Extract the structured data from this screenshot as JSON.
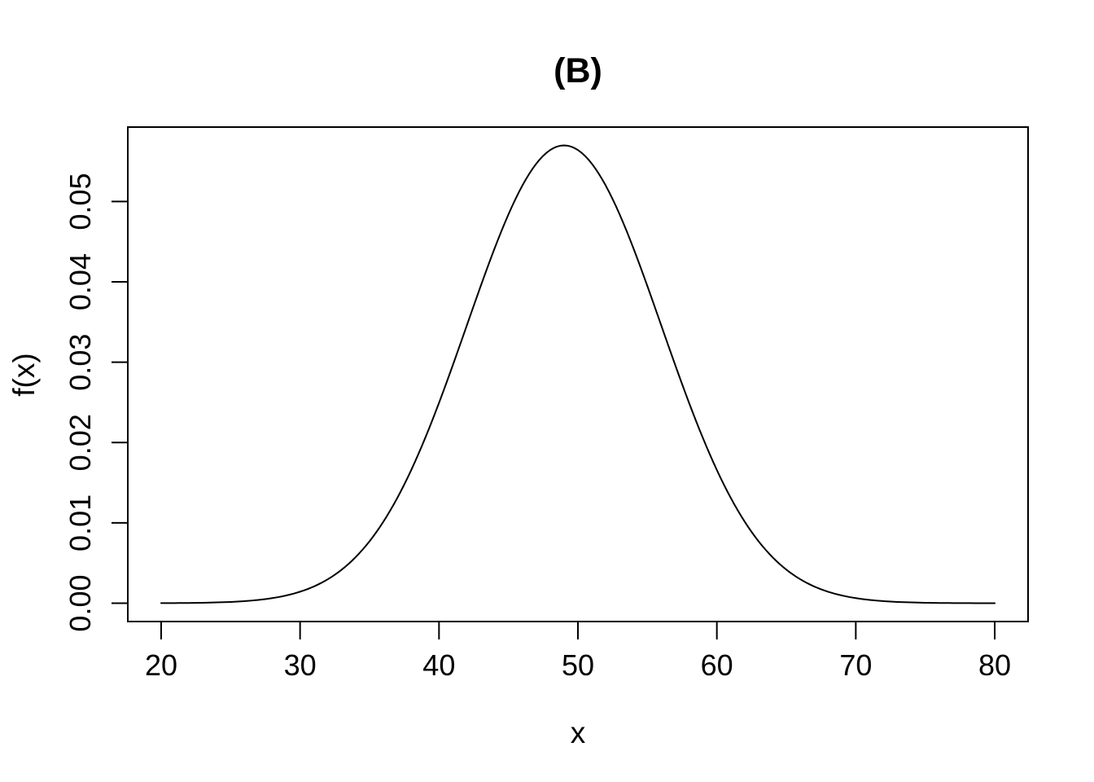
{
  "figure": {
    "title": "(B)",
    "xlabel": "x",
    "ylabel": "f(x)"
  },
  "chart_data": {
    "type": "line",
    "title": "(B)",
    "xlabel": "x",
    "ylabel": "f(x)",
    "xlim": [
      20,
      80
    ],
    "ylim": [
      0,
      0.056991
    ],
    "x_ticks": [
      20,
      30,
      40,
      50,
      60,
      70,
      80
    ],
    "x_tick_labels": [
      "20",
      "30",
      "40",
      "50",
      "60",
      "70",
      "80"
    ],
    "y_ticks": [
      0,
      0.01,
      0.02,
      0.03,
      0.04,
      0.05
    ],
    "y_tick_labels": [
      "0.00",
      "0.01",
      "0.02",
      "0.03",
      "0.04",
      "0.05"
    ],
    "grid": false,
    "legend": null,
    "line_color": "#000000",
    "background": "#ffffff",
    "curve": {
      "family": "normal-density",
      "mean": 49,
      "sd": 7,
      "peak": 0.056991
    },
    "series": [
      {
        "name": "density",
        "x": [
          20,
          21,
          22,
          23,
          24,
          25,
          26,
          27,
          28,
          29,
          30,
          31,
          32,
          33,
          34,
          35,
          36,
          37,
          38,
          39,
          40,
          41,
          42,
          43,
          44,
          45,
          46,
          47,
          48,
          49,
          50,
          51,
          52,
          53,
          54,
          55,
          56,
          57,
          58,
          59,
          60,
          61,
          62,
          63,
          64,
          65,
          66,
          67,
          68,
          69,
          70,
          71,
          72,
          73,
          74,
          75,
          76,
          77,
          78,
          79,
          80
        ],
        "y": [
          1.1e-05,
          1.9e-05,
          3.4e-05,
          5.8e-05,
          9.7e-05,
          0.00016,
          0.000257,
          0.000408,
          0.000633,
          0.000962,
          0.001431,
          0.002089,
          0.002986,
          0.004183,
          0.005735,
          0.007713,
          0.01016,
          0.01311,
          0.01658,
          0.020542,
          0.024938,
          0.029659,
          0.034567,
          0.039473,
          0.044162,
          0.048407,
          0.051991,
          0.054712,
          0.056413,
          0.056991,
          0.056413,
          0.054712,
          0.051991,
          0.048407,
          0.044162,
          0.039473,
          0.034567,
          0.029659,
          0.024938,
          0.020542,
          0.01658,
          0.01311,
          0.01016,
          0.007713,
          0.005735,
          0.004183,
          0.002986,
          0.002089,
          0.001431,
          0.000962,
          0.000633,
          0.000408,
          0.000257,
          0.00016,
          9.7e-05,
          5.8e-05,
          3.4e-05,
          1.9e-05,
          1.1e-05,
          6e-06,
          3e-06
        ]
      }
    ]
  }
}
